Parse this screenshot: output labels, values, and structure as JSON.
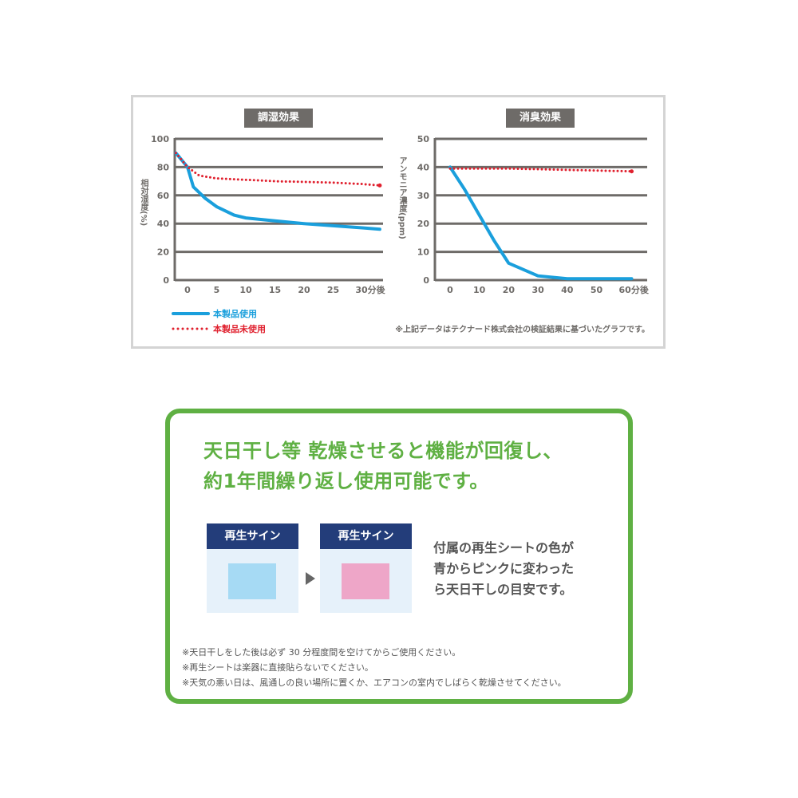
{
  "chart_data": [
    {
      "type": "line",
      "title": "調湿効果",
      "ylabel": "相対湿度(%)",
      "ylim": [
        0,
        100
      ],
      "yticks": [
        0,
        20,
        40,
        60,
        80,
        100
      ],
      "xticks": [
        "0",
        "5",
        "10",
        "15",
        "20",
        "25",
        "30分後"
      ],
      "xtick_values": [
        0,
        5,
        10,
        15,
        20,
        25,
        30
      ],
      "grid": true,
      "series": [
        {
          "name": "本製品使用",
          "color": "#1a9fdc",
          "style": "solid",
          "points": [
            [
              -2,
              90
            ],
            [
              0,
              80
            ],
            [
              1,
              66
            ],
            [
              3,
              58
            ],
            [
              5,
              52
            ],
            [
              8,
              46
            ],
            [
              10,
              44
            ],
            [
              15,
              42
            ],
            [
              20,
              40
            ],
            [
              25,
              38.5
            ],
            [
              30,
              37
            ],
            [
              33,
              36
            ]
          ]
        },
        {
          "name": "本製品未使用",
          "color": "#e0202e",
          "style": "dotted",
          "points": [
            [
              -2,
              90
            ],
            [
              0,
              80
            ],
            [
              2,
              74
            ],
            [
              5,
              72
            ],
            [
              10,
              71
            ],
            [
              15,
              70
            ],
            [
              20,
              69.5
            ],
            [
              25,
              69
            ],
            [
              30,
              68
            ],
            [
              33,
              67
            ]
          ]
        }
      ]
    },
    {
      "type": "line",
      "title": "消臭効果",
      "ylabel": "アンモニア濃度(ppm)",
      "ylim": [
        0,
        50
      ],
      "yticks": [
        0,
        10,
        20,
        30,
        40,
        50
      ],
      "xticks": [
        "0",
        "10",
        "20",
        "30",
        "40",
        "50",
        "60分後"
      ],
      "xtick_values": [
        0,
        10,
        20,
        30,
        40,
        50,
        60
      ],
      "grid": true,
      "series": [
        {
          "name": "本製品使用",
          "color": "#1a9fdc",
          "style": "solid",
          "points": [
            [
              0,
              40
            ],
            [
              5,
              32
            ],
            [
              10,
              23
            ],
            [
              15,
              14
            ],
            [
              20,
              6
            ],
            [
              30,
              1.5
            ],
            [
              40,
              0.5
            ],
            [
              50,
              0.5
            ],
            [
              62,
              0.5
            ]
          ]
        },
        {
          "name": "本製品未使用",
          "color": "#e0202e",
          "style": "dotted",
          "points": [
            [
              0,
              39.5
            ],
            [
              20,
              39.5
            ],
            [
              40,
              39
            ],
            [
              62,
              38.5
            ]
          ]
        }
      ]
    }
  ],
  "legend": {
    "used": "本製品使用",
    "unused": "本製品未使用"
  },
  "source_note": "※上記データはテクナード株式会社の検証結果に基づいたグラフです。",
  "info": {
    "headline": [
      "天日干し等 乾燥させると機能が回復し、",
      "約1年間繰り返し使用可能です。"
    ],
    "sign_label": "再生サイン",
    "before_color": "#a6daf4",
    "after_color": "#eea6c8",
    "description": [
      "付属の再生シートの色が",
      "青からピンクに変わった",
      "ら天日干しの目安です。"
    ],
    "notes": [
      "※天日干しをした後は必ず 30 分程度間を空けてからご使用ください。",
      "※再生シートは楽器に直接貼らないでください。",
      "※天気の悪い日は、風通しの良い場所に置くか、エアコンの室内でしばらく乾燥させてください。"
    ]
  }
}
